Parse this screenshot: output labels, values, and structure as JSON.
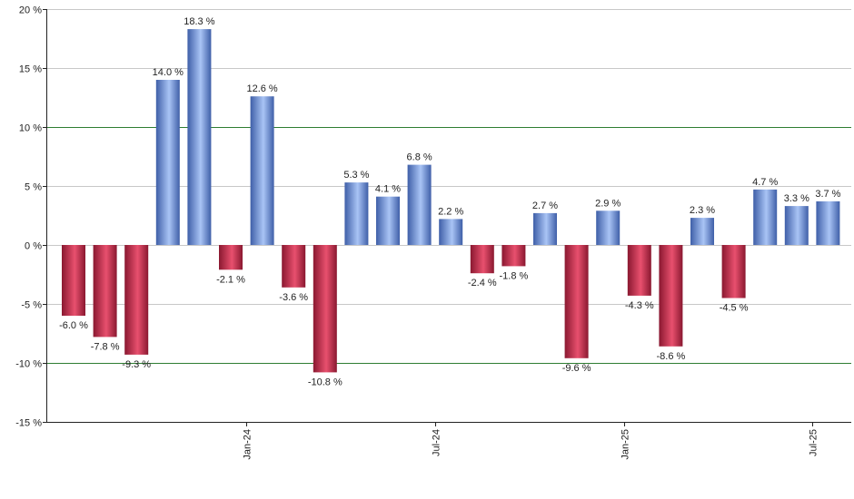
{
  "chart_data": {
    "type": "bar",
    "title": "",
    "xlabel": "",
    "ylabel": "",
    "ylim": [
      -15,
      20
    ],
    "yticks": [
      20,
      15,
      10,
      5,
      0,
      -5,
      -10,
      -15
    ],
    "ytick_labels": [
      "20 %",
      "15 %",
      "10 %",
      "5 %",
      "0 %",
      "-5 %",
      "-10 %",
      "-15 %"
    ],
    "highlight_lines": [
      10,
      -10
    ],
    "values": [
      -6.0,
      -7.8,
      -9.3,
      14.0,
      18.3,
      -2.1,
      12.6,
      -3.6,
      -10.8,
      5.3,
      4.1,
      6.8,
      2.2,
      -2.4,
      -1.8,
      2.7,
      -9.6,
      2.9,
      -4.3,
      -8.6,
      2.3,
      -4.5,
      4.7,
      3.3,
      3.7
    ],
    "value_labels": [
      "-6.0 %",
      "-7.8 %",
      "-9.3 %",
      "14.0 %",
      "18.3 %",
      "-2.1 %",
      "12.6 %",
      "-3.6 %",
      "-10.8 %",
      "5.3 %",
      "4.1 %",
      "6.8 %",
      "2.2 %",
      "-2.4 %",
      "-1.8 %",
      "2.7 %",
      "-9.6 %",
      "2.9 %",
      "-4.3 %",
      "-8.6 %",
      "2.3 %",
      "-4.5 %",
      "4.7 %",
      "3.3 %",
      "3.7 %"
    ],
    "x_ticks": [
      {
        "label": "Jan-24",
        "position": 5.5
      },
      {
        "label": "Jul-24",
        "position": 11.5
      },
      {
        "label": "Jan-25",
        "position": 17.5
      },
      {
        "label": "Jul-25",
        "position": 23.5
      }
    ],
    "colors": {
      "positive_dark": "#3f5fa8",
      "positive_light": "#a9c4f5",
      "negative_dark": "#8a1830",
      "negative_light": "#e8506e",
      "grid": "#c8c8c8",
      "highlight": "#2e7d32",
      "axis": "#222222"
    }
  }
}
